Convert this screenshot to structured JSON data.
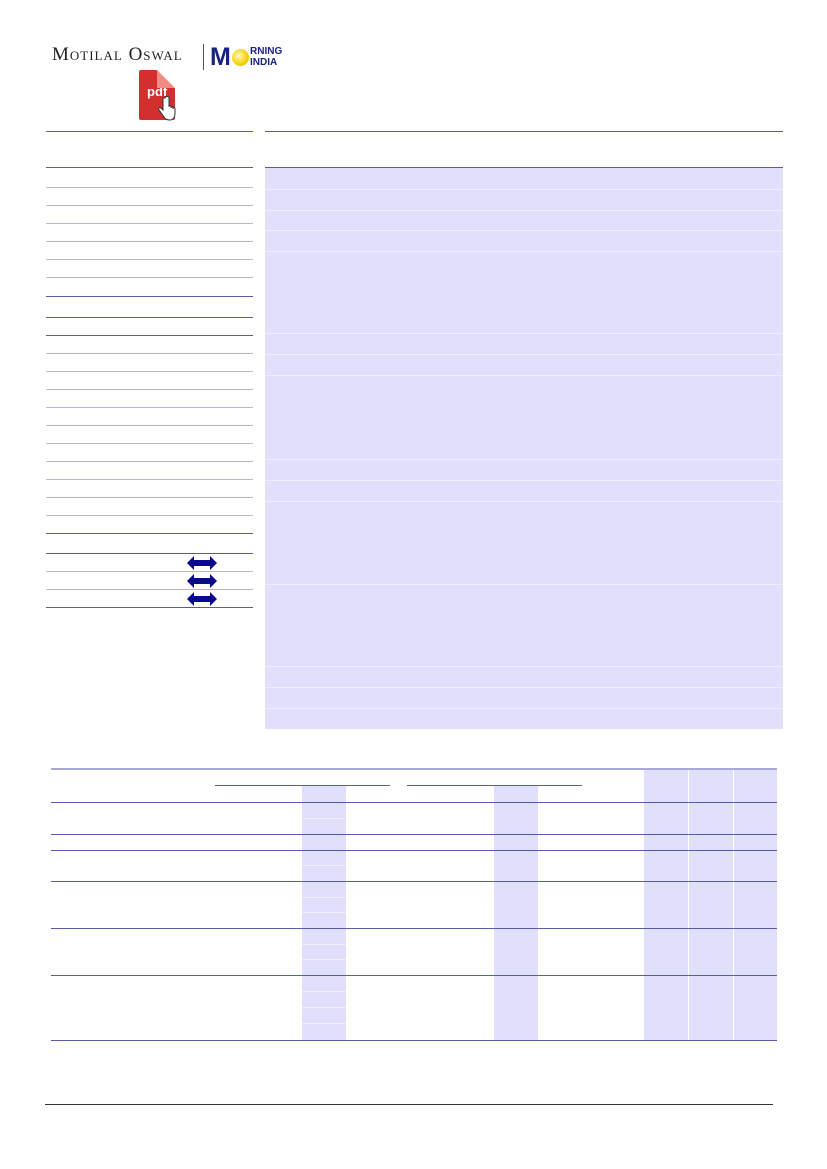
{
  "header": {
    "brand_left": "Motilal Oswal",
    "brand_right_initial": "M",
    "brand_right_line1": "RNING",
    "brand_right_line2": "INDIA",
    "pdf_label": "pdf"
  },
  "colors": {
    "rule": "#5a5aa8",
    "shade": "#e0e0fc",
    "arrow": "#0a0a8c",
    "pdf": "#d32f2f"
  },
  "icons": [
    "pdf-icon",
    "hand-cursor-icon",
    "double-arrow-icon"
  ]
}
